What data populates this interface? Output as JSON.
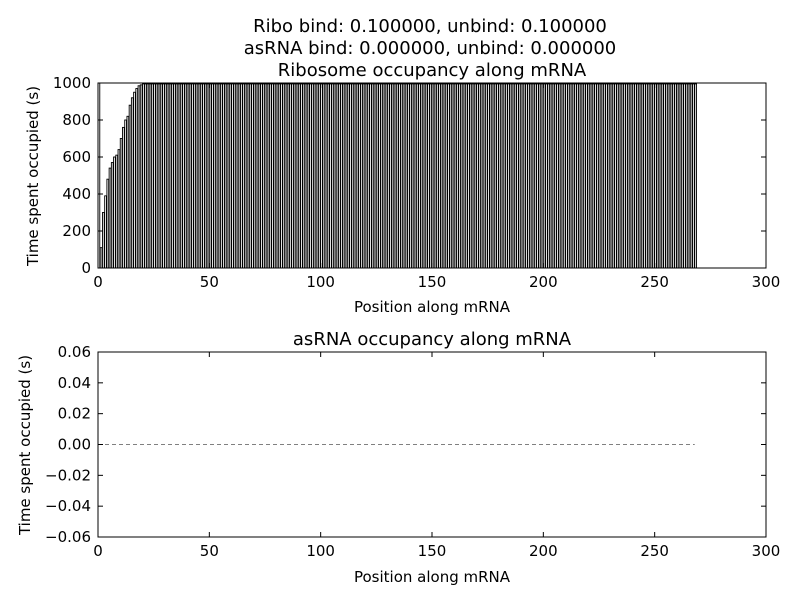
{
  "figure": {
    "suptitle_lines": [
      "Ribo bind: 0.100000, unbind: 0.100000",
      "asRNA bind: 0.000000, unbind: 0.000000"
    ]
  },
  "chart_data": [
    {
      "type": "bar",
      "title": "Ribosome occupancy along mRNA",
      "xlabel": "Position along mRNA",
      "ylabel": "Time spent occupied (s)",
      "xlim": [
        0,
        300
      ],
      "ylim": [
        0,
        1000
      ],
      "xticks": [
        "0",
        "50",
        "100",
        "150",
        "200",
        "250",
        "300"
      ],
      "yticks": [
        "0",
        "200",
        "400",
        "600",
        "800",
        "1000"
      ],
      "grid": false,
      "bar_color": "#ffffff",
      "edge_color": "#000000",
      "x_start": 0,
      "values": [
        1000,
        110,
        300,
        390,
        480,
        540,
        570,
        600,
        610,
        640,
        700,
        760,
        800,
        820,
        880,
        920,
        950,
        970,
        985,
        990,
        995,
        995,
        995,
        995,
        995,
        995,
        995,
        995,
        995,
        995,
        995,
        995,
        995,
        995,
        995,
        995,
        995,
        995,
        995,
        995,
        995,
        995,
        995,
        995,
        995,
        995,
        995,
        995,
        995,
        995,
        995,
        995,
        995,
        995,
        995,
        995,
        995,
        995,
        995,
        995,
        995,
        995,
        995,
        995,
        995,
        995,
        995,
        995,
        995,
        995,
        995,
        995,
        995,
        995,
        995,
        995,
        995,
        995,
        995,
        995,
        995,
        995,
        995,
        995,
        995,
        995,
        995,
        995,
        995,
        995,
        995,
        995,
        995,
        995,
        995,
        995,
        995,
        995,
        995,
        995,
        995,
        995,
        995,
        995,
        995,
        995,
        995,
        995,
        995,
        995,
        995,
        995,
        995,
        995,
        995,
        995,
        995,
        995,
        995,
        995,
        995,
        995,
        995,
        995,
        995,
        995,
        995,
        995,
        995,
        995,
        995,
        995,
        995,
        995,
        995,
        995,
        995,
        995,
        995,
        995,
        995,
        995,
        995,
        995,
        995,
        995,
        995,
        995,
        995,
        995,
        995,
        995,
        995,
        995,
        995,
        995,
        995,
        995,
        995,
        995,
        995,
        995,
        995,
        995,
        995,
        995,
        995,
        995,
        995,
        995,
        995,
        995,
        995,
        995,
        995,
        995,
        995,
        995,
        995,
        995,
        995,
        995,
        995,
        995,
        995,
        995,
        995,
        995,
        995,
        995,
        995,
        995,
        995,
        995,
        995,
        995,
        995,
        995,
        995,
        995,
        995,
        995,
        995,
        995,
        995,
        995,
        995,
        995,
        995,
        995,
        995,
        995,
        995,
        995,
        995,
        995,
        995,
        995,
        995,
        995,
        995,
        995,
        995,
        995,
        995,
        995,
        995,
        995,
        995,
        995,
        995,
        995,
        995,
        995,
        995,
        995,
        995,
        995,
        995,
        995,
        995,
        995,
        995,
        995,
        995,
        995,
        995,
        995,
        995,
        995,
        995,
        995,
        995,
        995,
        995,
        995,
        995,
        995,
        995,
        995,
        995,
        995,
        995,
        995,
        995,
        995,
        995,
        995,
        995
      ]
    },
    {
      "type": "line",
      "title": "asRNA occupancy along mRNA",
      "xlabel": "Position along mRNA",
      "ylabel": "Time spent occupied (s)",
      "xlim": [
        0,
        300
      ],
      "ylim": [
        -0.06,
        0.06
      ],
      "xticks": [
        "0",
        "50",
        "100",
        "150",
        "200",
        "250",
        "300"
      ],
      "yticks": [
        "−0.06",
        "−0.04",
        "−0.02",
        "0.00",
        "0.02",
        "0.04",
        "0.06"
      ],
      "grid": false,
      "line_color": "#808080",
      "line_style": "dashed",
      "x": [
        0,
        268
      ],
      "y": [
        0,
        0
      ]
    }
  ]
}
